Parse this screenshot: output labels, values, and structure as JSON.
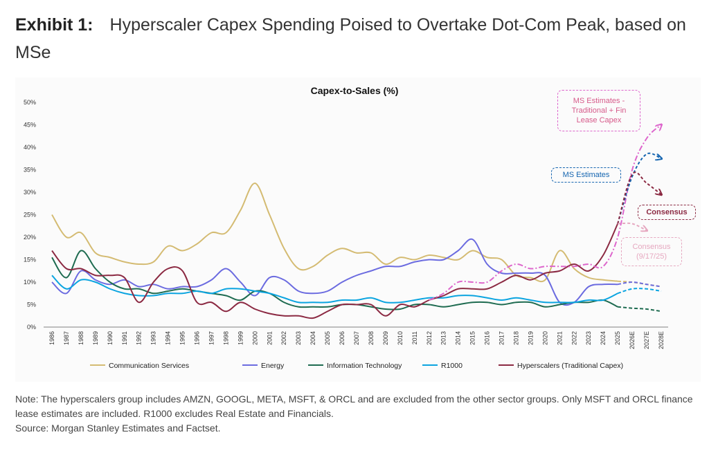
{
  "header": {
    "exhibit": "Exhibit 1:",
    "title": "Hyperscaler Capex Spending Poised to Overtake Dot-Com Peak, based on MSe"
  },
  "chart_data": {
    "type": "line",
    "title": "Capex-to-Sales (%)",
    "x": [
      "1986",
      "1987",
      "1988",
      "1989",
      "1990",
      "1991",
      "1992",
      "1993",
      "1994",
      "1995",
      "1996",
      "1997",
      "1998",
      "1999",
      "2000",
      "2001",
      "2002",
      "2003",
      "2004",
      "2005",
      "2006",
      "2007",
      "2008",
      "2009",
      "2010",
      "2011",
      "2012",
      "2013",
      "2014",
      "2015",
      "2016",
      "2017",
      "2018",
      "2019",
      "2020",
      "2021",
      "2022",
      "2023",
      "2024",
      "2025",
      "2026E",
      "2027E",
      "2028E"
    ],
    "ylim": [
      0,
      50
    ],
    "yticks": [
      "0%",
      "5%",
      "10%",
      "15%",
      "20%",
      "25%",
      "30%",
      "35%",
      "40%",
      "45%",
      "50%"
    ],
    "legend_position": "bottom",
    "grid": false,
    "series": [
      {
        "name": "Communication Services",
        "color": "#d4bb72",
        "values": [
          25,
          20,
          21,
          16.5,
          15.5,
          14.5,
          14,
          14.5,
          18,
          17,
          18.5,
          21,
          21,
          26,
          32,
          25,
          17.5,
          13,
          13.5,
          16,
          17.5,
          16.5,
          16.5,
          14,
          15.5,
          15,
          16,
          15.5,
          15,
          17,
          15.5,
          15,
          11.5,
          11,
          10.5,
          17,
          13,
          11,
          10.5,
          10.2,
          10,
          9.5,
          9
        ]
      },
      {
        "name": "Energy",
        "color": "#6b6be0",
        "values": [
          10,
          7.5,
          12.5,
          10.5,
          9.5,
          10.5,
          9,
          9.5,
          8.5,
          9,
          9,
          10.5,
          13,
          10,
          7,
          11,
          10.5,
          8,
          7.5,
          8,
          10,
          11.5,
          12.5,
          13.5,
          13.5,
          14.5,
          15,
          15,
          17,
          19.5,
          14,
          12,
          12,
          12,
          11.5,
          5.5,
          5.5,
          9,
          9.5,
          9.5,
          10,
          9.5,
          9
        ]
      },
      {
        "name": "Information Technology",
        "color": "#1e6b50",
        "values": [
          15.5,
          11,
          17,
          13,
          10,
          8.5,
          8.5,
          7.5,
          8,
          8.5,
          8,
          7.5,
          7,
          6,
          8,
          7.5,
          5.5,
          4.5,
          4.5,
          4.5,
          5,
          5,
          4.5,
          4,
          4,
          5,
          5,
          4.5,
          5,
          5.5,
          5.5,
          5,
          5.5,
          5.5,
          4.5,
          5,
          5.5,
          5.5,
          6,
          4.5,
          4.2,
          4,
          3.5
        ]
      },
      {
        "name": "R1000",
        "color": "#0aa4e0",
        "values": [
          11.5,
          8.5,
          10.5,
          10,
          8.5,
          7.5,
          7,
          7,
          7.5,
          7.5,
          8,
          7.5,
          8.5,
          8.5,
          8,
          7.5,
          6.5,
          5.5,
          5.5,
          5.5,
          6,
          6,
          6.5,
          5.5,
          5.5,
          6,
          6.5,
          6.5,
          7,
          7,
          6.5,
          6,
          6.5,
          6,
          5.5,
          5.5,
          5.5,
          6,
          6,
          7.5,
          8.5,
          8.5,
          8
        ]
      },
      {
        "name": "Hyperscalers (Traditional Capex)",
        "color": "#8b2942",
        "values": [
          17,
          13,
          13,
          11.5,
          11.5,
          11,
          5.5,
          10,
          13,
          12.5,
          5.5,
          5.5,
          3.5,
          5.5,
          4,
          3,
          2.5,
          2.5,
          2,
          3.5,
          5,
          5,
          5,
          2.5,
          5,
          4.5,
          6,
          7,
          8.5,
          8.5,
          8.5,
          10,
          11.5,
          10.5,
          12,
          12.5,
          14,
          12.5,
          16,
          23,
          34,
          32,
          29.5
        ]
      }
    ],
    "annotations": [
      {
        "label": "MS Estimates - Traditional + Fin Lease Capex",
        "color": "#dd66cc",
        "text_color": "#d65a8a",
        "x": [
          "2012",
          "2013",
          "2014",
          "2015",
          "2016",
          "2017",
          "2018",
          "2019",
          "2020",
          "2021",
          "2022",
          "2023",
          "2024",
          "2025",
          "2026E",
          "2027E",
          "2028E"
        ],
        "values": [
          6,
          7.5,
          10,
          10,
          10,
          12.5,
          14,
          13,
          13.5,
          13.5,
          13.5,
          14,
          13.5,
          20,
          35,
          42,
          45
        ]
      },
      {
        "label": "MS Estimates",
        "color": "#1565b0",
        "text_color": "#1565b0",
        "x": [
          "2025",
          "2026E",
          "2027E",
          "2028E"
        ],
        "values": [
          23,
          33.5,
          38.5,
          37.5
        ]
      },
      {
        "label": "Consensus",
        "color": "#8b2942",
        "text_color": "#8b2942",
        "x": [
          "2025",
          "2026E",
          "2027E",
          "2028E"
        ],
        "values": [
          23,
          34,
          32,
          29.5
        ]
      },
      {
        "label": "Consensus (9/17/25)",
        "color": "#e6a8c0",
        "text_color": "#e6a8c0",
        "x": [
          "2025",
          "2026E",
          "2027E"
        ],
        "values": [
          23,
          23,
          21.5
        ]
      }
    ]
  },
  "note": {
    "line1": "Note: The hyperscalers group includes AMZN, GOOGL, META, MSFT, & ORCL and are excluded from the other sector groups. Only MSFT and ORCL finance lease estimates are included. R1000 excludes Real Estate and Financials.",
    "source": "Source: Morgan Stanley Estimates and Factset."
  }
}
